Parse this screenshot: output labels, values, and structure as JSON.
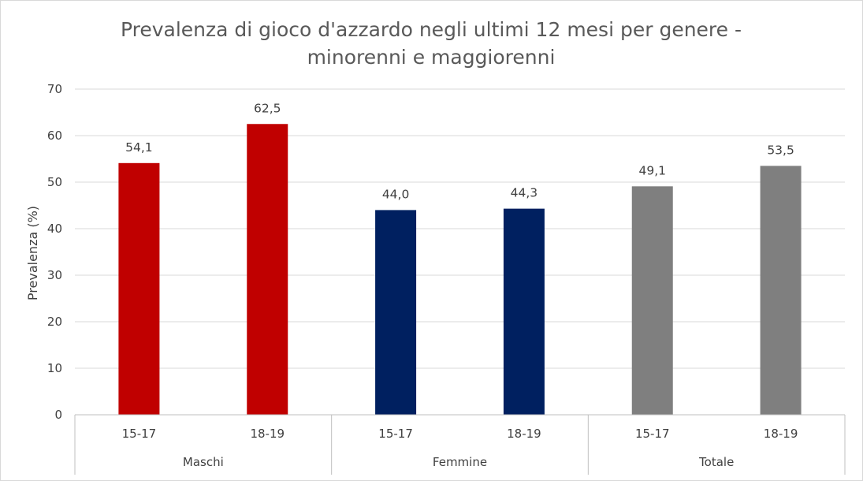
{
  "chart_data": {
    "type": "bar",
    "title_lines": [
      "Prevalenza di gioco d'azzardo negli ultimi 12 mesi per genere -",
      "minorenni e maggiorenni"
    ],
    "ylabel": "Prevalenza (%)",
    "xlabel": "",
    "ylim": [
      0,
      70
    ],
    "yticks": [
      "0",
      "10",
      "20",
      "30",
      "40",
      "50",
      "60",
      "70"
    ],
    "grid": true,
    "groups": [
      {
        "name": "Maschi",
        "color": "#c00000",
        "bars": [
          {
            "category": "15-17",
            "value": 54.1,
            "label": "54,1"
          },
          {
            "category": "18-19",
            "value": 62.5,
            "label": "62,5"
          }
        ]
      },
      {
        "name": "Femmine",
        "color": "#002060",
        "bars": [
          {
            "category": "15-17",
            "value": 44.0,
            "label": "44,0"
          },
          {
            "category": "18-19",
            "value": 44.3,
            "label": "44,3"
          }
        ]
      },
      {
        "name": "Totale",
        "color": "#7f7f7f",
        "bars": [
          {
            "category": "15-17",
            "value": 49.1,
            "label": "49,1"
          },
          {
            "category": "18-19",
            "value": 53.5,
            "label": "53,5"
          }
        ]
      }
    ]
  }
}
